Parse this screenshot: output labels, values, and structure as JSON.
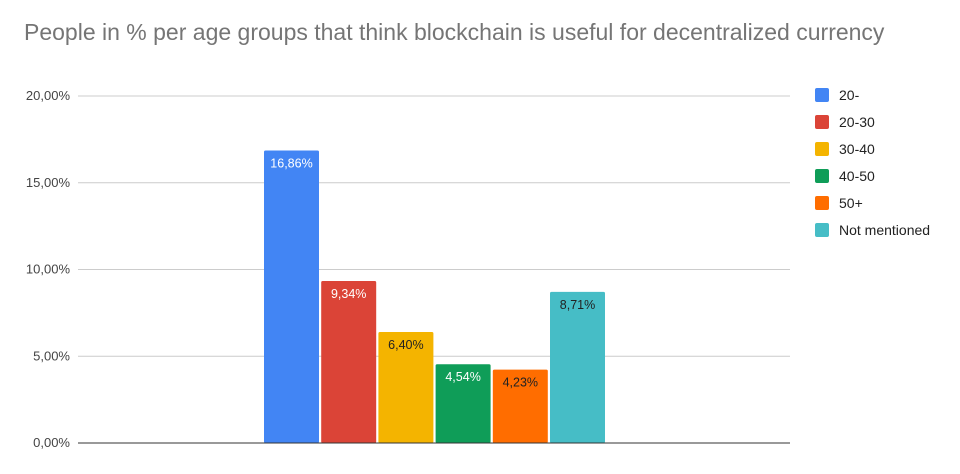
{
  "chart_data": {
    "type": "bar",
    "title": "People in % per age groups that think blockchain is useful for decentralized currency",
    "xlabel": "",
    "ylabel": "",
    "ylim": [
      0,
      20
    ],
    "yticks": [
      0,
      5,
      10,
      15,
      20
    ],
    "ytick_labels": [
      "0,00%",
      "5,00%",
      "10,00%",
      "15,00%",
      "20,00%"
    ],
    "grid": true,
    "legend_position": "right",
    "series": [
      {
        "name": "20-",
        "value": 16.86,
        "label": "16,86%",
        "color": "#4285F4",
        "label_color": "#ffffff"
      },
      {
        "name": "20-30",
        "value": 9.34,
        "label": "9,34%",
        "color": "#DB4437",
        "label_color": "#ffffff"
      },
      {
        "name": "30-40",
        "value": 6.4,
        "label": "6,40%",
        "color": "#F4B400",
        "label_color": "#222222"
      },
      {
        "name": "40-50",
        "value": 4.54,
        "label": "4,54%",
        "color": "#0F9D58",
        "label_color": "#ffffff"
      },
      {
        "name": "50+",
        "value": 4.23,
        "label": "4,23%",
        "color": "#FF6D00",
        "label_color": "#222222"
      },
      {
        "name": "Not mentioned",
        "value": 8.71,
        "label": "8,71%",
        "color": "#46BDC6",
        "label_color": "#222222"
      }
    ]
  }
}
